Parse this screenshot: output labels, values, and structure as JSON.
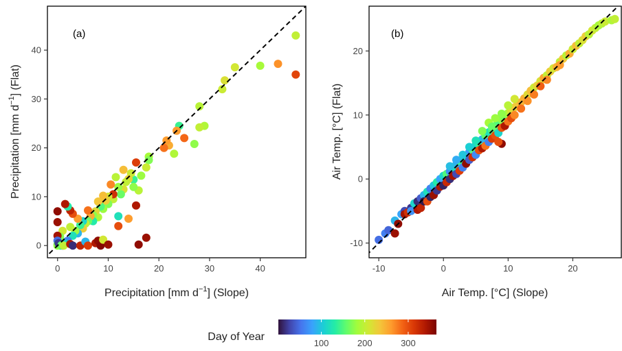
{
  "colorbar": {
    "title": "Day of Year",
    "ticks": [
      "100",
      "200",
      "300"
    ],
    "tick_values": [
      100,
      200,
      300
    ],
    "range": [
      1,
      365
    ],
    "palette": [
      "#30123b",
      "#4145ab",
      "#4675ed",
      "#39a2fc",
      "#1bcfd4",
      "#24eca6",
      "#61fc6c",
      "#a4fc3b",
      "#d1e834",
      "#f3c63a",
      "#fe9b2d",
      "#f36315",
      "#d93806",
      "#b11901",
      "#7a0402"
    ]
  },
  "chart_data": [
    {
      "type": "scatter",
      "panel_label": "(a)",
      "xlabel_main": "Precipitation [mm d",
      "xlabel_sup": "−1",
      "xlabel_tail": "] (Slope)",
      "ylabel_main": "Precipitation [mm d",
      "ylabel_sup": "−1",
      "ylabel_tail": "] (Flat)",
      "xlim": [
        -2,
        49
      ],
      "ylim": [
        -2.5,
        49
      ],
      "xticks": [
        0,
        10,
        20,
        30,
        40
      ],
      "xtick_labels": [
        "0",
        "10",
        "20",
        "30",
        "40"
      ],
      "yticks": [
        0,
        10,
        20,
        30,
        40
      ],
      "ytick_labels": [
        "0",
        "10",
        "20",
        "30",
        "40"
      ],
      "one_to_one_line": true,
      "grid": false,
      "color_by": "day_of_year",
      "points": [
        [
          47.0,
          43.0,
          200
        ],
        [
          47.0,
          35.0,
          305
        ],
        [
          43.5,
          37.2,
          265
        ],
        [
          40.0,
          36.8,
          185
        ],
        [
          35.0,
          36.5,
          210
        ],
        [
          33.0,
          33.8,
          215
        ],
        [
          32.5,
          32.0,
          205
        ],
        [
          28.0,
          28.5,
          195
        ],
        [
          29.0,
          24.5,
          190
        ],
        [
          28.0,
          24.2,
          200
        ],
        [
          27.0,
          20.8,
          175
        ],
        [
          25.0,
          22.0,
          285
        ],
        [
          24.0,
          24.5,
          140
        ],
        [
          23.5,
          23.5,
          260
        ],
        [
          23.0,
          18.8,
          190
        ],
        [
          22.0,
          20.5,
          250
        ],
        [
          21.5,
          21.5,
          260
        ],
        [
          21.0,
          20.0,
          280
        ],
        [
          18.0,
          18.2,
          185
        ],
        [
          18.0,
          17.5,
          170
        ],
        [
          17.5,
          16.0,
          205
        ],
        [
          16.5,
          14.3,
          180
        ],
        [
          15.5,
          8.2,
          340
        ],
        [
          15.5,
          17.0,
          310
        ],
        [
          16.0,
          11.3,
          195
        ],
        [
          15.0,
          13.5,
          140
        ],
        [
          15.0,
          12.0,
          175
        ],
        [
          14.5,
          14.8,
          205
        ],
        [
          14.0,
          13.6,
          225
        ],
        [
          13.5,
          13.0,
          200
        ],
        [
          13.0,
          15.5,
          240
        ],
        [
          13.0,
          11.5,
          215
        ],
        [
          12.5,
          10.5,
          160
        ],
        [
          12.0,
          6.0,
          120
        ],
        [
          12.0,
          12.0,
          180
        ],
        [
          11.5,
          14.0,
          195
        ],
        [
          11.0,
          9.5,
          200
        ],
        [
          11.0,
          10.5,
          320
        ],
        [
          10.5,
          12.5,
          270
        ],
        [
          10.0,
          10.0,
          210
        ],
        [
          10.0,
          8.5,
          170
        ],
        [
          9.5,
          9.2,
          230
        ],
        [
          9.0,
          10.2,
          240
        ],
        [
          9.0,
          7.5,
          180
        ],
        [
          8.5,
          8.0,
          150
        ],
        [
          8.0,
          5.8,
          190
        ],
        [
          8.0,
          9.0,
          235
        ],
        [
          7.5,
          7.0,
          220
        ],
        [
          7.0,
          6.2,
          175
        ],
        [
          7.0,
          5.0,
          130
        ],
        [
          6.5,
          6.0,
          250
        ],
        [
          6.0,
          7.2,
          280
        ],
        [
          6.0,
          5.0,
          160
        ],
        [
          5.5,
          4.5,
          200
        ],
        [
          5.0,
          5.0,
          110
        ],
        [
          5.0,
          3.5,
          230
        ],
        [
          4.5,
          4.2,
          140
        ],
        [
          4.0,
          5.5,
          260
        ],
        [
          4.0,
          2.5,
          90
        ],
        [
          3.5,
          3.0,
          180
        ],
        [
          3.0,
          6.5,
          300
        ],
        [
          3.0,
          2.0,
          120
        ],
        [
          2.5,
          7.2,
          330
        ],
        [
          2.5,
          3.8,
          200
        ],
        [
          2.0,
          8.0,
          130
        ],
        [
          2.0,
          1.0,
          60
        ],
        [
          1.5,
          8.5,
          340
        ],
        [
          1.5,
          0.4,
          110
        ],
        [
          1.0,
          3.0,
          210
        ],
        [
          1.0,
          0.0,
          40
        ],
        [
          0.5,
          1.8,
          170
        ],
        [
          0.5,
          0.0,
          130
        ],
        [
          0.0,
          7.0,
          355
        ],
        [
          0.0,
          4.8,
          350
        ],
        [
          0.0,
          2.0,
          345
        ],
        [
          0.0,
          1.0,
          50
        ],
        [
          0.0,
          0.2,
          150
        ],
        [
          0.0,
          0.0,
          175
        ],
        [
          0.2,
          0.5,
          20
        ],
        [
          0.8,
          0.1,
          160
        ],
        [
          1.2,
          0.0,
          200
        ],
        [
          2.5,
          0.3,
          340
        ],
        [
          3.0,
          0.0,
          15
        ],
        [
          4.5,
          0.0,
          330
        ],
        [
          5.5,
          0.8,
          90
        ],
        [
          6.0,
          0.0,
          310
        ],
        [
          7.5,
          0.5,
          340
        ],
        [
          8.0,
          1.0,
          355
        ],
        [
          8.5,
          0.0,
          360
        ],
        [
          9.0,
          1.2,
          210
        ],
        [
          10.0,
          0.2,
          350
        ],
        [
          16.0,
          0.2,
          355
        ],
        [
          17.5,
          1.6,
          350
        ],
        [
          12.0,
          4.0,
          300
        ],
        [
          14.0,
          5.5,
          260
        ]
      ]
    },
    {
      "type": "scatter",
      "panel_label": "(b)",
      "xlabel": "Air Temp. [°C] (Slope)",
      "ylabel": "Air Temp. [°C] (Flat)",
      "xlim": [
        -11.5,
        27.5
      ],
      "ylim": [
        -12.3,
        27
      ],
      "xticks": [
        -10,
        0,
        10,
        20
      ],
      "xtick_labels": [
        "-10",
        "0",
        "10",
        "20"
      ],
      "yticks": [
        -10,
        0,
        10,
        20
      ],
      "ytick_labels": [
        "-10",
        "0",
        "10",
        "20"
      ],
      "one_to_one_line": true,
      "grid": false,
      "color_by": "day_of_year",
      "points": [
        [
          -10.0,
          -9.5,
          50
        ],
        [
          -9.0,
          -8.5,
          60
        ],
        [
          -8.5,
          -8.0,
          45
        ],
        [
          -7.5,
          -6.5,
          90
        ],
        [
          -7.5,
          -8.5,
          350
        ],
        [
          -7.0,
          -7.0,
          355
        ],
        [
          -6.5,
          -5.5,
          80
        ],
        [
          -6.0,
          -5.0,
          30
        ],
        [
          -6.0,
          -5.5,
          345
        ],
        [
          -5.5,
          -5.2,
          320
        ],
        [
          -5.0,
          -4.5,
          20
        ],
        [
          -5.0,
          -5.0,
          70
        ],
        [
          -4.5,
          -3.8,
          110
        ],
        [
          -4.0,
          -3.5,
          15
        ],
        [
          -4.0,
          -4.8,
          340
        ],
        [
          -3.5,
          -3.0,
          40
        ],
        [
          -3.5,
          -4.5,
          330
        ],
        [
          -3.0,
          -2.5,
          90
        ],
        [
          -3.0,
          -3.5,
          5
        ],
        [
          -2.5,
          -2.0,
          120
        ],
        [
          -2.5,
          -3.5,
          300
        ],
        [
          -2.0,
          -1.5,
          60
        ],
        [
          -2.0,
          -2.8,
          10
        ],
        [
          -1.5,
          -1.0,
          100
        ],
        [
          -1.5,
          -2.5,
          350
        ],
        [
          -1.0,
          -0.5,
          130
        ],
        [
          -1.0,
          -1.8,
          20
        ],
        [
          -0.5,
          0.0,
          80
        ],
        [
          -0.5,
          -1.2,
          340
        ],
        [
          0.0,
          0.5,
          110
        ],
        [
          0.0,
          -1.0,
          10
        ],
        [
          0.5,
          0.8,
          150
        ],
        [
          0.5,
          -0.5,
          325
        ],
        [
          1.0,
          1.2,
          70
        ],
        [
          1.0,
          0.0,
          15
        ],
        [
          1.5,
          1.8,
          120
        ],
        [
          1.5,
          0.5,
          345
        ],
        [
          2.0,
          2.3,
          90
        ],
        [
          2.0,
          0.8,
          30
        ],
        [
          2.5,
          2.8,
          140
        ],
        [
          2.5,
          1.3,
          310
        ],
        [
          3.0,
          3.3,
          100
        ],
        [
          3.0,
          1.8,
          60
        ],
        [
          3.5,
          3.6,
          130
        ],
        [
          3.5,
          2.4,
          355
        ],
        [
          4.0,
          4.2,
          75
        ],
        [
          4.0,
          3.0,
          40
        ],
        [
          4.5,
          4.6,
          150
        ],
        [
          4.5,
          3.4,
          320
        ],
        [
          5.0,
          5.3,
          110
        ],
        [
          5.0,
          3.8,
          65
        ],
        [
          5.5,
          5.6,
          140
        ],
        [
          5.5,
          4.5,
          300
        ],
        [
          6.0,
          6.2,
          90
        ],
        [
          6.0,
          4.8,
          340
        ],
        [
          6.5,
          6.8,
          155
        ],
        [
          6.5,
          5.2,
          280
        ],
        [
          7.0,
          7.3,
          120
        ],
        [
          7.0,
          5.8,
          60
        ],
        [
          7.5,
          7.6,
          145
        ],
        [
          7.5,
          6.3,
          310
        ],
        [
          8.0,
          8.3,
          160
        ],
        [
          8.0,
          6.8,
          300
        ],
        [
          8.5,
          8.6,
          150
        ],
        [
          8.5,
          7.2,
          110
        ],
        [
          9.0,
          9.3,
          175
        ],
        [
          9.0,
          8.0,
          295
        ],
        [
          9.5,
          9.7,
          165
        ],
        [
          9.5,
          8.3,
          340
        ],
        [
          9.0,
          5.5,
          355
        ],
        [
          10.0,
          10.3,
          190
        ],
        [
          10.0,
          9.0,
          280
        ],
        [
          10.5,
          10.6,
          215
        ],
        [
          10.5,
          9.5,
          300
        ],
        [
          11.0,
          11.2,
          230
        ],
        [
          11.0,
          10.0,
          270
        ],
        [
          11.5,
          11.8,
          235
        ],
        [
          12.0,
          12.0,
          245
        ],
        [
          12.0,
          11.0,
          280
        ],
        [
          12.5,
          12.6,
          250
        ],
        [
          13.0,
          13.2,
          220
        ],
        [
          13.0,
          12.2,
          265
        ],
        [
          13.5,
          13.8,
          240
        ],
        [
          14.0,
          14.3,
          205
        ],
        [
          14.0,
          13.2,
          275
        ],
        [
          14.5,
          14.6,
          225
        ],
        [
          15.0,
          15.3,
          215
        ],
        [
          15.0,
          14.5,
          290
        ],
        [
          15.5,
          15.8,
          255
        ],
        [
          16.0,
          16.2,
          200
        ],
        [
          16.0,
          15.5,
          270
        ],
        [
          16.5,
          16.8,
          230
        ],
        [
          17.0,
          17.3,
          210
        ],
        [
          17.5,
          17.5,
          245
        ],
        [
          18.0,
          18.3,
          200
        ],
        [
          18.0,
          17.8,
          260
        ],
        [
          18.5,
          18.8,
          235
        ],
        [
          19.0,
          19.3,
          195
        ],
        [
          19.5,
          19.6,
          250
        ],
        [
          20.0,
          20.3,
          205
        ],
        [
          20.5,
          20.8,
          240
        ],
        [
          21.0,
          21.2,
          200
        ],
        [
          21.5,
          21.7,
          215
        ],
        [
          22.0,
          22.3,
          230
        ],
        [
          22.5,
          22.6,
          195
        ],
        [
          23.0,
          23.2,
          210
        ],
        [
          23.5,
          23.6,
          200
        ],
        [
          24.0,
          24.0,
          185
        ],
        [
          24.5,
          24.3,
          195
        ],
        [
          25.0,
          24.6,
          205
        ],
        [
          26.0,
          24.8,
          190
        ],
        [
          26.5,
          25.0,
          200
        ],
        [
          6.0,
          7.5,
          170
        ],
        [
          7.0,
          8.8,
          185
        ],
        [
          8.0,
          9.5,
          180
        ],
        [
          3.0,
          3.8,
          100
        ],
        [
          2.0,
          3.0,
          85
        ],
        [
          1.0,
          2.0,
          95
        ],
        [
          5.0,
          6.0,
          120
        ],
        [
          4.0,
          5.0,
          105
        ],
        [
          10.0,
          11.5,
          195
        ],
        [
          11.0,
          12.5,
          210
        ],
        [
          7.5,
          8.2,
          160
        ],
        [
          9.0,
          10.2,
          175
        ],
        [
          8.5,
          5.8,
          300
        ]
      ]
    }
  ]
}
